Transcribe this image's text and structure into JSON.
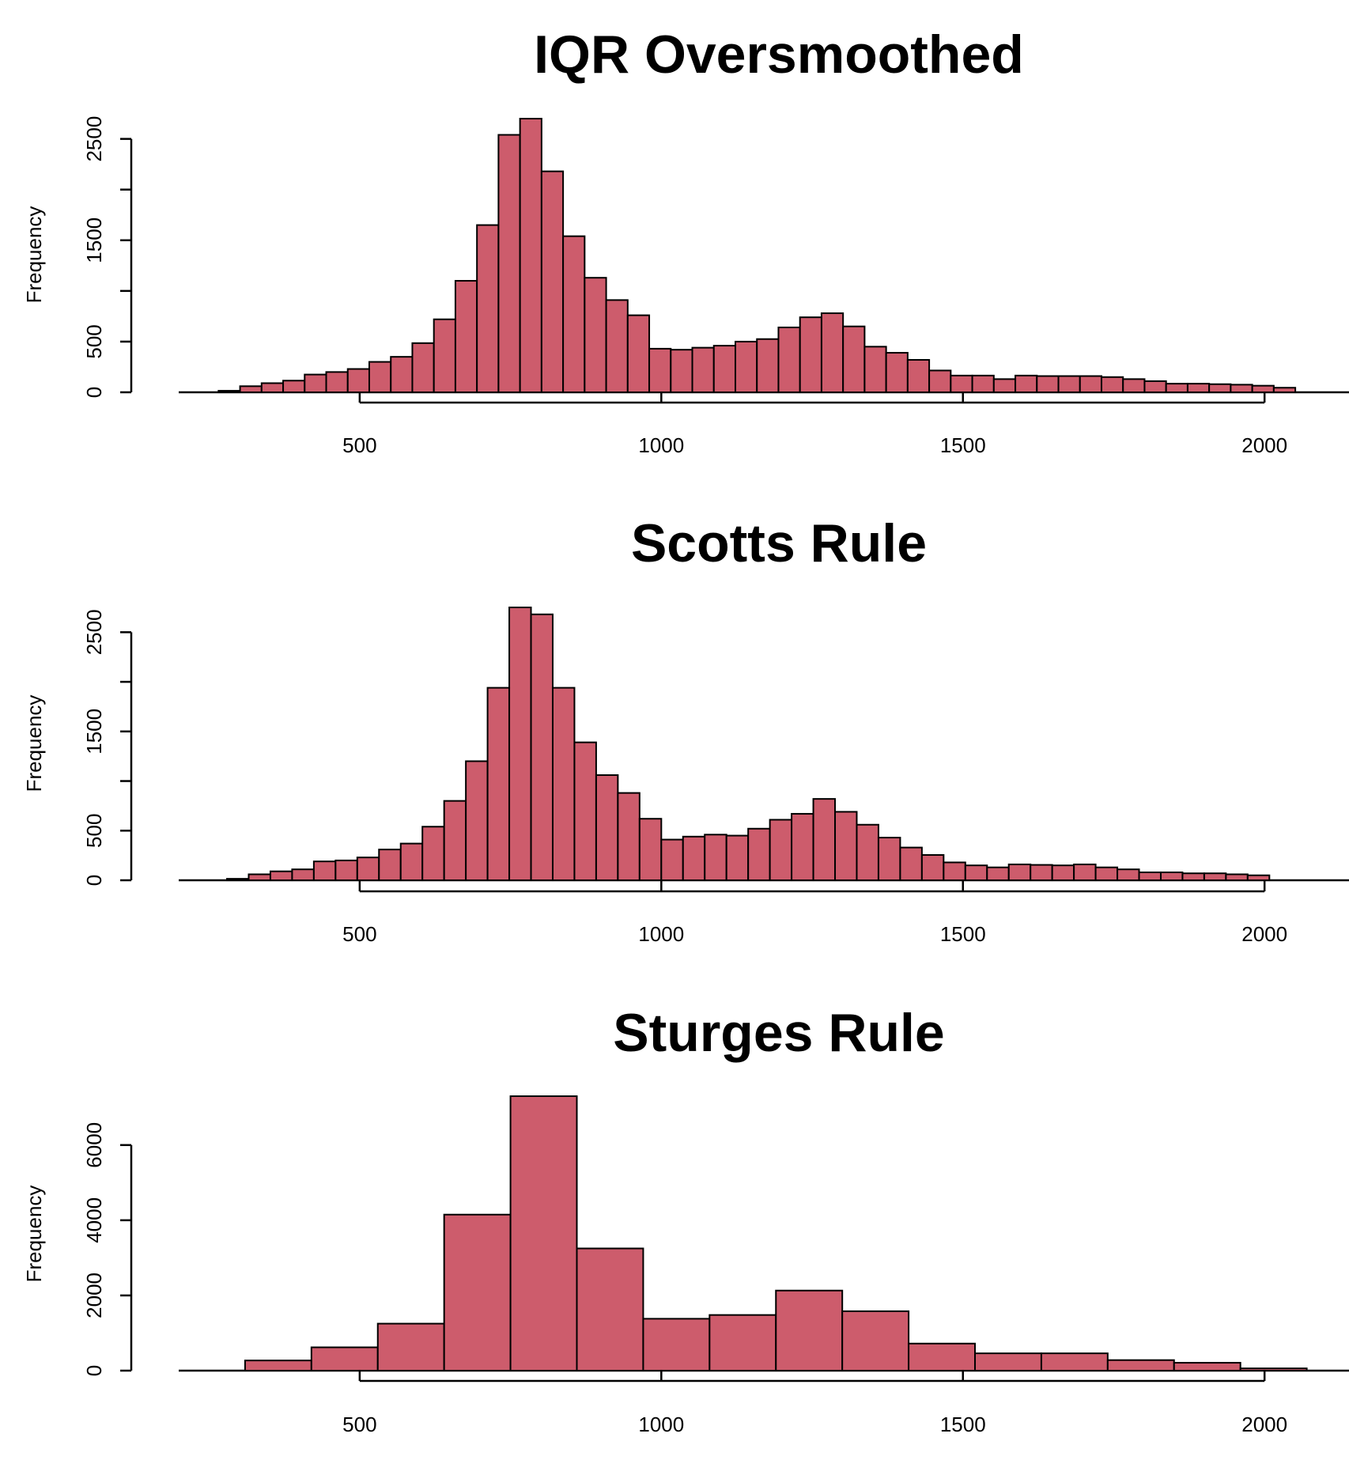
{
  "chart_data": [
    {
      "type": "bar",
      "title": "IQR Oversmoothed",
      "xlabel": "",
      "ylabel": "Frequency",
      "bar_color": "#cd5c6c",
      "xlim": [
        200,
        2140
      ],
      "ylim": [
        0,
        2700
      ],
      "x_axis_range": [
        500,
        2000
      ],
      "y_axis_range": [
        0,
        2500
      ],
      "xticks": [
        500,
        1000,
        1500,
        2000
      ],
      "yticks": [
        0,
        500,
        1000,
        1500,
        2000,
        2500
      ],
      "ytick_labels": [
        "0",
        "500",
        "",
        "1500",
        "",
        "2500"
      ],
      "xtick_labels": [
        "500",
        "1000",
        "1500",
        "2000"
      ],
      "bin_start": 266,
      "bin_width": 35.7,
      "values": [
        15,
        60,
        90,
        115,
        175,
        200,
        230,
        300,
        350,
        485,
        720,
        1100,
        1650,
        2540,
        2700,
        2180,
        1540,
        1130,
        910,
        760,
        430,
        420,
        440,
        460,
        500,
        525,
        640,
        740,
        780,
        650,
        450,
        390,
        320,
        215,
        165,
        165,
        130,
        165,
        160,
        160,
        160,
        150,
        130,
        110,
        85,
        85,
        80,
        75,
        65,
        45
      ]
    },
    {
      "type": "bar",
      "title": "Scotts Rule",
      "xlabel": "",
      "ylabel": "Frequency",
      "bar_color": "#cd5c6c",
      "xlim": [
        200,
        2140
      ],
      "ylim": [
        0,
        2750
      ],
      "x_axis_range": [
        500,
        2000
      ],
      "y_axis_range": [
        0,
        2500
      ],
      "xticks": [
        500,
        1000,
        1500,
        2000
      ],
      "yticks": [
        0,
        500,
        1000,
        1500,
        2000,
        2500
      ],
      "ytick_labels": [
        "0",
        "500",
        "",
        "1500",
        "",
        "2500"
      ],
      "xtick_labels": [
        "500",
        "1000",
        "1500",
        "2000"
      ],
      "bin_start": 280,
      "bin_width": 36,
      "values": [
        15,
        60,
        90,
        110,
        190,
        200,
        230,
        310,
        370,
        540,
        800,
        1200,
        1940,
        2750,
        2680,
        1940,
        1390,
        1060,
        880,
        620,
        410,
        440,
        460,
        450,
        520,
        610,
        670,
        820,
        690,
        560,
        430,
        330,
        255,
        180,
        150,
        130,
        160,
        155,
        150,
        160,
        130,
        110,
        80,
        80,
        70,
        70,
        60,
        50
      ]
    },
    {
      "type": "bar",
      "title": "Sturges Rule",
      "xlabel": "",
      "ylabel": "Frequency",
      "bar_color": "#cd5c6c",
      "xlim": [
        200,
        2140
      ],
      "ylim": [
        0,
        7300
      ],
      "x_axis_range": [
        500,
        2000
      ],
      "y_axis_range": [
        0,
        6000
      ],
      "xticks": [
        500,
        1000,
        1500,
        2000
      ],
      "yticks": [
        0,
        2000,
        4000,
        6000
      ],
      "ytick_labels": [
        "0",
        "2000",
        "4000",
        "6000"
      ],
      "xtick_labels": [
        "500",
        "1000",
        "1500",
        "2000"
      ],
      "bin_start": 310,
      "bin_width": 110,
      "values": [
        270,
        620,
        1250,
        4150,
        7300,
        3250,
        1380,
        1480,
        2130,
        1580,
        720,
        460,
        460,
        280,
        210,
        60
      ]
    }
  ]
}
